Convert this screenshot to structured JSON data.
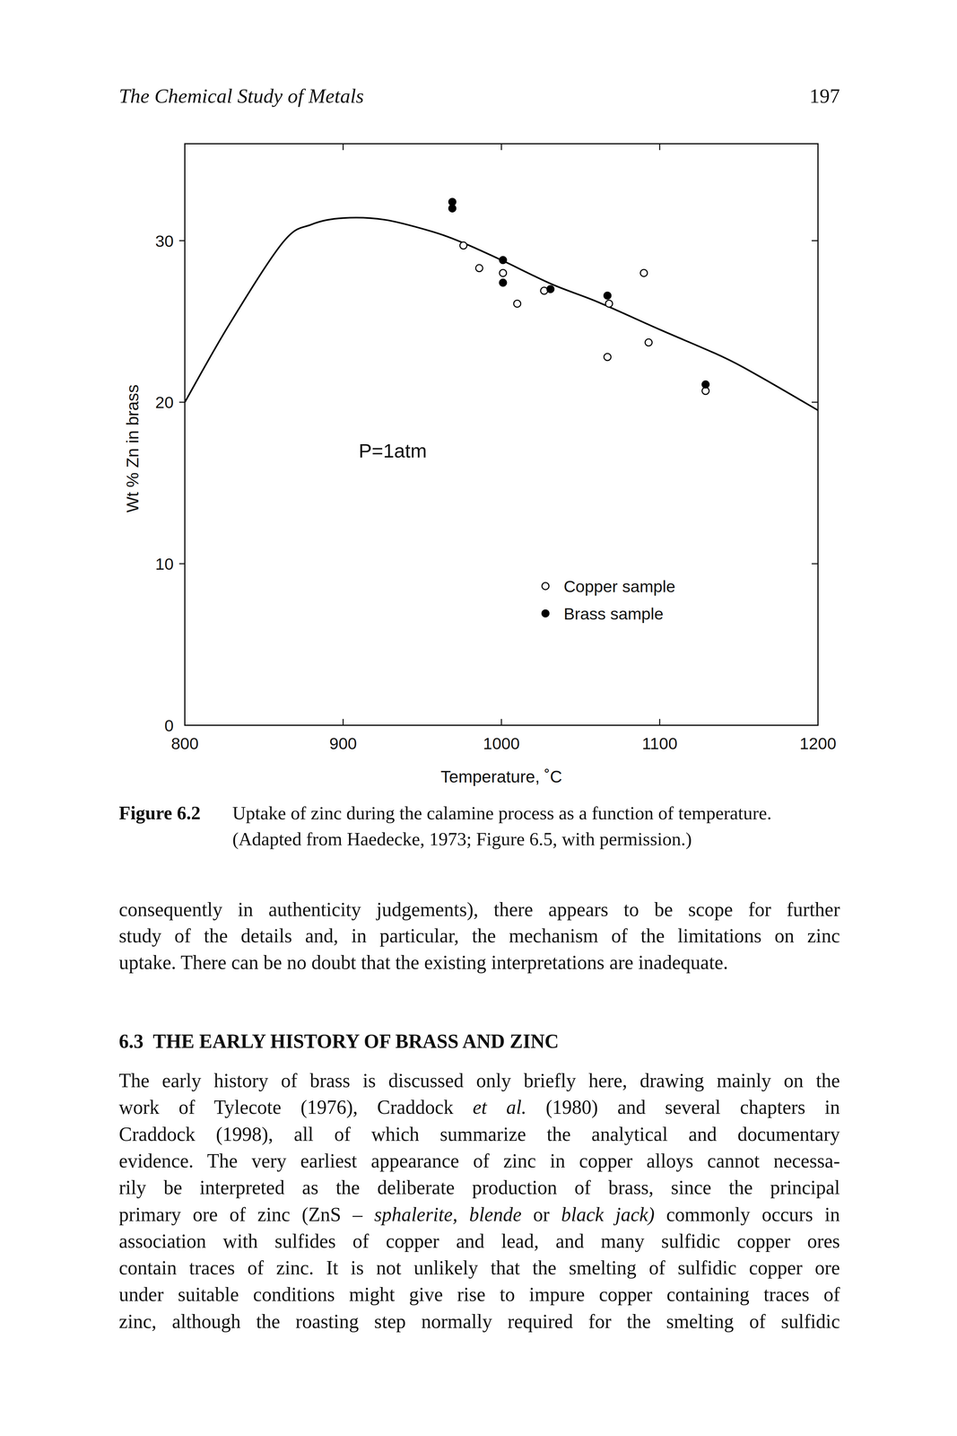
{
  "header": {
    "title": "The Chemical Study of Metals",
    "page_number": "197"
  },
  "chart_data": {
    "type": "scatter",
    "x_label": "Temperature, ˚C",
    "y_label": "Wt % Zn in brass",
    "annotation": "P=1atm",
    "xlim": [
      800,
      1200
    ],
    "ylim": [
      0,
      36
    ],
    "xticks": [
      800,
      900,
      1000,
      1100,
      1200
    ],
    "yticks": [
      0,
      10,
      20,
      30
    ],
    "legend": "lower right",
    "grid": false,
    "series": [
      {
        "name": "Copper sample",
        "type": "scatter",
        "marker": "open circle",
        "color": "#000000",
        "x": [
          976,
          986,
          1001,
          1010,
          1027,
          1068,
          1067,
          1090,
          1093,
          1129
        ],
        "values": [
          29.7,
          28.3,
          28.0,
          26.1,
          26.9,
          26.1,
          22.8,
          28.0,
          23.7,
          20.7
        ]
      },
      {
        "name": "Brass sample",
        "type": "scatter",
        "marker": "filled circle",
        "color": "#000000",
        "x": [
          969,
          969,
          1001,
          1001,
          1031,
          1067,
          1129
        ],
        "values": [
          32.4,
          32.0,
          28.8,
          27.4,
          27.0,
          26.6,
          21.1
        ]
      },
      {
        "type": "line",
        "line_style": "solid",
        "color": "#000000",
        "x": [
          800,
          828,
          862,
          880,
          900,
          926,
          955,
          975,
          1000,
          1032,
          1061,
          1100,
          1140,
          1163,
          1200
        ],
        "values": [
          20,
          24.8,
          29.9,
          31.0,
          31.4,
          31.3,
          30.6,
          29.9,
          28.8,
          27.3,
          26.2,
          24.5,
          22.8,
          21.6,
          19.5
        ]
      }
    ]
  },
  "figure": {
    "label": "Figure 6.2",
    "caption": [
      "Uptake of zinc during the calamine process as a function of temperature.",
      "(Adapted from Haedecke, 1973; Figure 6.5, with permission.)"
    ]
  },
  "body": {
    "paragraph_1": [
      [
        "consequently in authenticity judgements), there appears to be scope for further"
      ],
      [
        "study of the details and, in particular, the mechanism of the limitations on zinc"
      ],
      [
        "uptake. There can be no doubt that the existing interpretations are inadequate."
      ]
    ],
    "heading": "6.3  THE EARLY HISTORY OF BRASS AND ZINC",
    "paragraph_2": [
      [
        "The early history of brass is discussed only briefly here, drawing mainly on the"
      ],
      [
        "work of Tylecote (1976), Craddock ",
        {
          "text": "et al.",
          "italic": true
        },
        " (1980) and several chapters in"
      ],
      [
        "Craddock (1998), all of which summarize the analytical and documentary"
      ],
      [
        "evidence. The very earliest appearance of zinc in copper alloys cannot necessa-"
      ],
      [
        "rily be interpreted as the deliberate production of brass, since the principal"
      ],
      [
        "primary ore of zinc (ZnS – ",
        {
          "text": "sphalerite, blende",
          "italic": true
        },
        " or ",
        {
          "text": "black jack)",
          "italic": true
        },
        " commonly occurs in"
      ],
      [
        "association with sulfides of copper and lead, and many sulfidic copper ores"
      ],
      [
        "contain traces of zinc. It is not unlikely that the smelting of sulfidic copper ore"
      ],
      [
        "under suitable conditions might give rise to impure copper containing traces of"
      ],
      [
        "zinc, although the roasting step normally required for the smelting of sulfidic"
      ]
    ]
  }
}
